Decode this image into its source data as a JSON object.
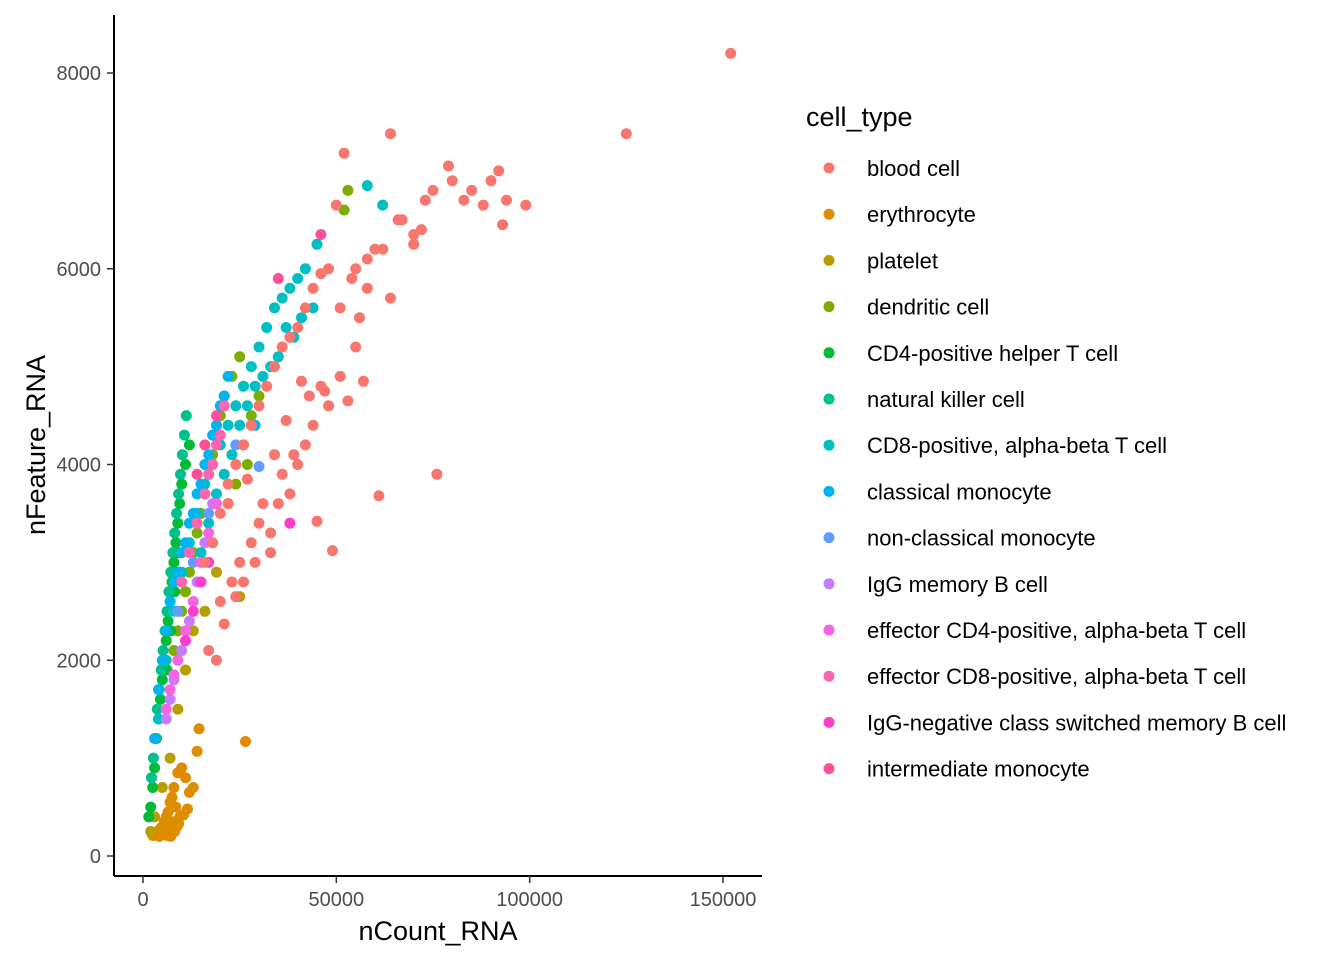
{
  "chart_data": {
    "type": "scatter",
    "xlabel": "nCount_RNA",
    "ylabel": "nFeature_RNA",
    "xlim": [
      -5000,
      160000
    ],
    "ylim": [
      -200,
      8500
    ],
    "x_ticks": [
      0,
      50000,
      100000,
      150000
    ],
    "x_tick_labels": [
      "0",
      "50000",
      "100000",
      "150000"
    ],
    "y_ticks": [
      0,
      2000,
      4000,
      6000,
      8000
    ],
    "y_tick_labels": [
      "0",
      "2000",
      "4000",
      "6000",
      "8000"
    ],
    "grid": false,
    "legend": {
      "title": "cell_type",
      "placement": "right"
    },
    "series": [
      {
        "name": "blood cell",
        "color": "#F8766D",
        "x": [
          152000,
          125000,
          99000,
          93000,
          92000,
          88000,
          83000,
          80000,
          75000,
          72000,
          70000,
          66000,
          64000,
          60000,
          58000,
          55000,
          52000,
          50000,
          48000,
          46000,
          44000,
          42000,
          40000,
          38000,
          36000,
          34000,
          32000,
          30000,
          28000,
          26000,
          24000,
          22000,
          20000,
          18000,
          16000,
          76000,
          61000,
          57000,
          49000,
          45000,
          43000,
          39000,
          36000,
          33000,
          31000,
          29000,
          26000,
          24000,
          21000,
          19000,
          17000,
          62000,
          58000,
          55000,
          53000,
          51000,
          48000,
          46000,
          44000,
          42000,
          40000,
          38000,
          35000,
          33000,
          30000,
          28000,
          25000,
          23000,
          20000,
          64000,
          67000,
          70000,
          73000,
          79000,
          85000,
          90000,
          94000,
          56000,
          54000,
          51000,
          47000,
          41000,
          37000,
          34000,
          27000,
          22000
        ],
        "y": [
          8200,
          7380,
          6650,
          6450,
          7000,
          6650,
          6700,
          6900,
          6800,
          6400,
          6350,
          6500,
          7380,
          6200,
          6100,
          6000,
          7180,
          6650,
          6000,
          5950,
          5800,
          5600,
          5400,
          5300,
          5200,
          5000,
          4800,
          4600,
          4400,
          4200,
          4000,
          3800,
          3500,
          3200,
          3000,
          3900,
          3680,
          4850,
          3120,
          3420,
          4700,
          4100,
          3900,
          3300,
          3600,
          3000,
          2800,
          2650,
          2370,
          2000,
          2100,
          6200,
          5800,
          5200,
          4650,
          4900,
          4600,
          4800,
          4400,
          4200,
          4000,
          3700,
          3600,
          3100,
          3400,
          3200,
          3000,
          2800,
          2600,
          5700,
          6500,
          6250,
          6700,
          7050,
          6800,
          6900,
          6700,
          5500,
          5900,
          5600,
          4750,
          4850,
          4450,
          4100,
          3850,
          3600
        ]
      },
      {
        "name": "erythrocyte",
        "color": "#DE8C00",
        "x": [
          26500,
          14500,
          14000,
          13000,
          12000,
          11000,
          10000,
          9000,
          8500,
          8000,
          7500,
          7000,
          6500,
          6000,
          5500,
          5000,
          4500,
          4000,
          3500,
          3000,
          2500,
          9500,
          8800,
          7800,
          6800,
          5800,
          4800,
          3800,
          2800,
          7200,
          6200,
          5200,
          4200,
          8200,
          9200,
          10500,
          11500,
          6600,
          5600,
          4600,
          3600
        ],
        "y": [
          1170,
          1300,
          1070,
          700,
          650,
          800,
          900,
          850,
          500,
          700,
          600,
          550,
          450,
          400,
          350,
          300,
          280,
          260,
          240,
          220,
          210,
          400,
          300,
          350,
          280,
          250,
          230,
          220,
          210,
          200,
          210,
          220,
          200,
          250,
          330,
          420,
          480,
          320,
          260,
          240,
          210
        ]
      },
      {
        "name": "platelet",
        "color": "#B79F00",
        "x": [
          25000,
          19000,
          16000,
          13000,
          11000,
          9000,
          7000,
          5000,
          3000,
          2000
        ],
        "y": [
          2650,
          2900,
          2500,
          2300,
          1900,
          1500,
          1000,
          700,
          400,
          250
        ]
      },
      {
        "name": "dendritic cell",
        "color": "#7CAE00",
        "x": [
          53000,
          52000,
          25000,
          23000,
          21000,
          20000,
          19000,
          18000,
          17000,
          16000,
          15000,
          14000,
          13000,
          12000,
          11000,
          10000,
          9000,
          8000,
          26000,
          24000,
          22000,
          28000,
          30000,
          27000
        ],
        "y": [
          6800,
          6600,
          5100,
          4900,
          4700,
          4500,
          4300,
          4100,
          3900,
          3700,
          3500,
          3300,
          3100,
          2900,
          2700,
          2500,
          2300,
          2100,
          4200,
          3800,
          3600,
          4500,
          4700,
          4000
        ]
      },
      {
        "name": "CD4-positive helper T cell",
        "color": "#00BA38",
        "x": [
          3000,
          3500,
          4000,
          4500,
          5000,
          5500,
          6000,
          6500,
          7000,
          7500,
          8000,
          8500,
          9000,
          9500,
          10000,
          11000,
          12000,
          2500,
          2000,
          1500,
          6200,
          7200,
          8200,
          9200
        ],
        "y": [
          900,
          1200,
          1400,
          1600,
          1800,
          2000,
          2200,
          2400,
          2600,
          2800,
          3000,
          3200,
          3400,
          3600,
          3800,
          4000,
          4200,
          700,
          500,
          400,
          1900,
          2300,
          2700,
          3100
        ]
      },
      {
        "name": "natural killer cell",
        "color": "#00C08B",
        "x": [
          2200,
          2700,
          3200,
          3700,
          4200,
          4700,
          5200,
          5700,
          6200,
          6700,
          7200,
          7700,
          8200,
          8700,
          9200,
          9700,
          10200,
          10700,
          11200
        ],
        "y": [
          800,
          1000,
          1200,
          1500,
          1700,
          1900,
          2100,
          2300,
          2500,
          2700,
          2900,
          3100,
          3300,
          3500,
          3700,
          3900,
          4100,
          4300,
          4500
        ]
      },
      {
        "name": "CD8-positive, alpha-beta T cell",
        "color": "#00BFC4",
        "x": [
          58000,
          62000,
          45000,
          42000,
          40000,
          38000,
          36000,
          34000,
          32000,
          30000,
          28000,
          26000,
          24000,
          22000,
          20000,
          18000,
          16000,
          14000,
          12000,
          10000,
          8000,
          6000,
          4000,
          44000,
          41000,
          39000,
          37000,
          35000,
          33000,
          31000,
          29000,
          27000,
          25000,
          23000,
          21000,
          19000,
          17000,
          15000
        ],
        "y": [
          6850,
          6650,
          6250,
          6000,
          5900,
          5800,
          5700,
          5600,
          5400,
          5200,
          5000,
          4800,
          4600,
          4400,
          4200,
          4000,
          3800,
          3500,
          3200,
          2900,
          2500,
          2000,
          1400,
          5600,
          5500,
          5300,
          5400,
          5100,
          5000,
          4900,
          4800,
          4600,
          4400,
          4100,
          3900,
          3700,
          3400,
          3100
        ]
      },
      {
        "name": "classical monocyte",
        "color": "#00B4EF",
        "x": [
          29000,
          22000,
          20000,
          18000,
          16000,
          14000,
          12000,
          10000,
          8000,
          6000,
          4000,
          3000,
          21000,
          19000,
          17000,
          15000,
          13000,
          11000,
          9000,
          7000,
          5000
        ],
        "y": [
          4400,
          4900,
          4600,
          4300,
          4000,
          3700,
          3400,
          3100,
          2800,
          2300,
          1700,
          1200,
          4700,
          4400,
          4100,
          3800,
          3500,
          3200,
          2900,
          2600,
          2000
        ]
      },
      {
        "name": "non-classical monocyte",
        "color": "#619CFF",
        "x": [
          30000,
          28000,
          24000,
          17000,
          13000,
          9000
        ],
        "y": [
          3980,
          4400,
          4200,
          3500,
          3000,
          2500
        ]
      },
      {
        "name": "IgG memory B cell",
        "color": "#C77CFF",
        "x": [
          14000,
          12000,
          10000,
          8000,
          7000,
          6000,
          16000,
          18000
        ],
        "y": [
          2800,
          2400,
          2100,
          1800,
          1600,
          1400,
          3200,
          3600
        ]
      },
      {
        "name": "effector CD4-positive, alpha-beta T cell",
        "color": "#F564E3",
        "x": [
          13000,
          11000,
          9000,
          8000,
          7000,
          15000,
          17000,
          19000,
          6000
        ],
        "y": [
          2600,
          2300,
          2000,
          1850,
          1700,
          3000,
          3300,
          3600,
          1500
        ]
      },
      {
        "name": "effector CD8-positive, alpha-beta T cell",
        "color": "#FF64B0",
        "x": [
          20000,
          18000,
          16000,
          14000,
          12000,
          10000,
          21000,
          19000,
          17000
        ],
        "y": [
          4300,
          4000,
          3700,
          3400,
          3100,
          2800,
          4600,
          4200,
          3900
        ]
      },
      {
        "name": "IgG-negative class switched memory B cell",
        "color": "#FF3DCB",
        "x": [
          38000,
          17000,
          15000,
          13000,
          11000
        ],
        "y": [
          3400,
          3000,
          2800,
          2500,
          2200
        ]
      },
      {
        "name": "intermediate monocyte",
        "color": "#FF4F98",
        "x": [
          35000,
          46000,
          19000,
          16000,
          14000
        ],
        "y": [
          5900,
          6350,
          4500,
          4200,
          3900
        ]
      }
    ]
  }
}
